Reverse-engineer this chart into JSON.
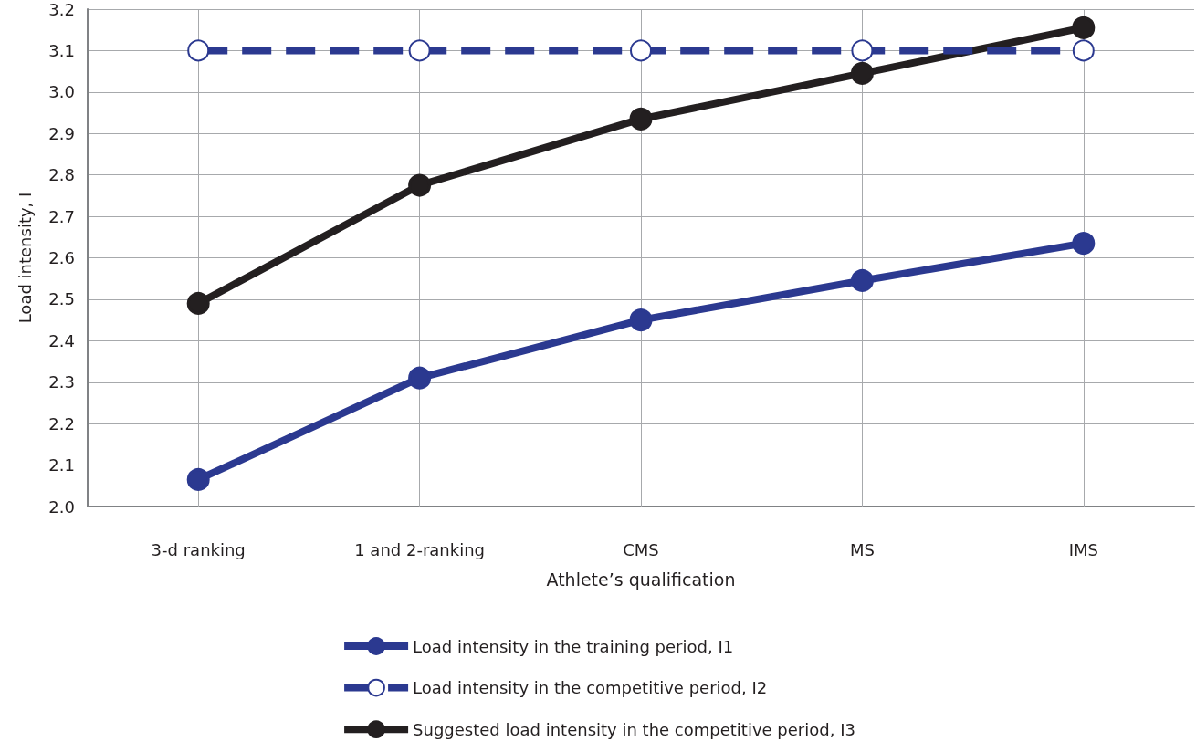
{
  "chart_data": {
    "type": "line",
    "xlabel": "Athlete’s qualification",
    "ylabel": "Load intensity, I",
    "categories": [
      "3-d ranking",
      "1 and 2-ranking",
      "CMS",
      "MS",
      "IMS"
    ],
    "series": [
      {
        "name": "Load intensity in the training period, I1",
        "color": "#2b3990",
        "values": [
          2.065,
          2.31,
          2.45,
          2.545,
          2.635
        ],
        "line_style": "solid"
      },
      {
        "name": "Load intensity in the competitive period, I2",
        "color": "#2b3990",
        "values": [
          3.1,
          3.1,
          3.1,
          3.1,
          3.1
        ],
        "line_style": "dashed"
      },
      {
        "name": "Suggested load intensity in the competitive period, I3",
        "color": "#231f20",
        "values": [
          2.49,
          2.775,
          2.935,
          3.045,
          3.155
        ],
        "line_style": "solid"
      }
    ],
    "ylim": [
      2.0,
      3.2
    ],
    "yticks": [
      {
        "value": 2,
        "label": "2.0"
      },
      2.1,
      2.2,
      2.3,
      2.4,
      2.5,
      2.6,
      2.7,
      2.8,
      2.9,
      {
        "value": 3,
        "label": "3.0"
      },
      3.1,
      3.2
    ],
    "grid": true,
    "legend": "bottom",
    "marker": "circle"
  }
}
